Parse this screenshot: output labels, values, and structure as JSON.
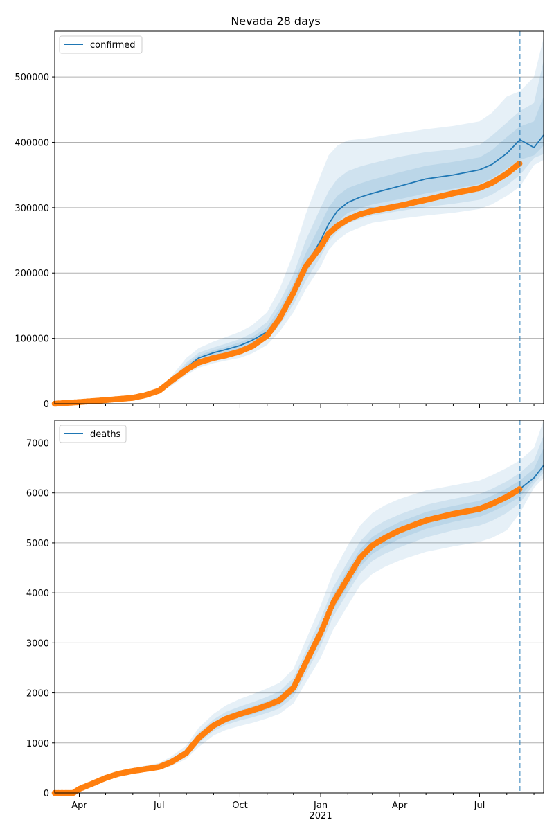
{
  "title": "Nevada 28 days",
  "chart_data": [
    {
      "type": "line",
      "legend": "confirmed",
      "legend_position": "top-left",
      "grid": "horizontal",
      "ylim": [
        0,
        570000
      ],
      "y_ticks": [
        0,
        100000,
        200000,
        300000,
        400000,
        500000
      ],
      "forecast_start": "2021-08-16",
      "x_range": [
        "2020-03-04",
        "2021-09-12"
      ],
      "model": {
        "x": [
          "2020-03-04",
          "2020-04-01",
          "2020-05-01",
          "2020-06-01",
          "2020-06-15",
          "2020-07-01",
          "2020-07-15",
          "2020-08-01",
          "2020-08-15",
          "2020-09-01",
          "2020-09-15",
          "2020-10-01",
          "2020-10-15",
          "2020-11-01",
          "2020-11-15",
          "2020-12-01",
          "2020-12-15",
          "2021-01-01",
          "2021-01-10",
          "2021-01-20",
          "2021-02-01",
          "2021-02-15",
          "2021-03-01",
          "2021-04-01",
          "2021-05-01",
          "2021-06-01",
          "2021-07-01",
          "2021-07-15",
          "2021-08-01",
          "2021-08-16",
          "2021-09-01",
          "2021-09-12"
        ],
        "y": [
          0,
          2500,
          5500,
          9000,
          13000,
          20000,
          33000,
          55000,
          70000,
          78000,
          83000,
          89000,
          97000,
          110000,
          135000,
          170000,
          210000,
          250000,
          275000,
          295000,
          308000,
          316000,
          322000,
          333000,
          344000,
          350000,
          358000,
          366000,
          383000,
          404000,
          392000,
          411000
        ]
      },
      "observed": {
        "x": [
          "2020-03-04",
          "2020-04-01",
          "2020-05-01",
          "2020-06-01",
          "2020-06-15",
          "2020-07-01",
          "2020-07-15",
          "2020-08-01",
          "2020-08-15",
          "2020-09-01",
          "2020-09-15",
          "2020-10-01",
          "2020-10-15",
          "2020-11-01",
          "2020-11-15",
          "2020-12-01",
          "2020-12-15",
          "2021-01-01",
          "2021-01-10",
          "2021-01-20",
          "2021-02-01",
          "2021-02-15",
          "2021-03-01",
          "2021-04-01",
          "2021-05-01",
          "2021-06-01",
          "2021-07-01",
          "2021-07-15",
          "2021-08-01",
          "2021-08-16"
        ],
        "y": [
          0,
          2500,
          5500,
          9000,
          13000,
          20000,
          35000,
          52000,
          63000,
          70000,
          74000,
          80000,
          88000,
          104000,
          130000,
          170000,
          210000,
          240000,
          260000,
          272000,
          282000,
          290000,
          295000,
          303000,
          312000,
          322000,
          330000,
          338000,
          352000,
          368000
        ]
      },
      "bands": [
        {
          "level": "outer",
          "upper": [
            0,
            2500,
            5800,
            10000,
            15000,
            24000,
            42000,
            70000,
            85000,
            95000,
            102000,
            110000,
            120000,
            140000,
            175000,
            230000,
            290000,
            350000,
            380000,
            395000,
            403000,
            405000,
            407000,
            414000,
            420000,
            425000,
            432000,
            445000,
            470000,
            478000,
            500000,
            560000
          ],
          "lower": [
            0,
            2500,
            5300,
            8500,
            12000,
            17000,
            27000,
            44000,
            55000,
            62000,
            66000,
            70000,
            77000,
            90000,
            110000,
            140000,
            175000,
            210000,
            235000,
            250000,
            262000,
            270000,
            277000,
            283000,
            288000,
            292000,
            298000,
            305000,
            318000,
            332000,
            365000,
            373000
          ]
        },
        {
          "level": "middle",
          "upper": [
            0,
            2500,
            5700,
            9600,
            14000,
            22000,
            38000,
            63000,
            78000,
            86000,
            92000,
            99000,
            108000,
            125000,
            155000,
            198000,
            250000,
            300000,
            325000,
            344000,
            356000,
            363000,
            368000,
            378000,
            385000,
            389000,
            396000,
            410000,
            430000,
            448000,
            460000,
            525000
          ],
          "lower": [
            0,
            2500,
            5400,
            8800,
            12500,
            18500,
            30000,
            48000,
            60000,
            68000,
            72000,
            77000,
            85000,
            98000,
            120000,
            152000,
            188000,
            225000,
            248000,
            263000,
            276000,
            283000,
            288000,
            295000,
            301000,
            306000,
            312000,
            320000,
            334000,
            350000,
            376000,
            382000
          ]
        },
        {
          "level": "inner",
          "upper": [
            0,
            2500,
            5600,
            9300,
            13500,
            21000,
            35500,
            59000,
            74000,
            82000,
            87000,
            94000,
            102000,
            117000,
            145000,
            184000,
            230000,
            275000,
            300000,
            318000,
            330000,
            337000,
            343000,
            354000,
            364000,
            370000,
            377000,
            388000,
            408000,
            424000,
            432000,
            470000
          ],
          "lower": [
            0,
            2500,
            5450,
            8900,
            12700,
            19000,
            31500,
            51000,
            64000,
            72000,
            77000,
            82000,
            90000,
            103000,
            126000,
            160000,
            198000,
            238000,
            262000,
            278000,
            292000,
            299000,
            305000,
            313000,
            322000,
            329000,
            336000,
            345000,
            360000,
            373000,
            380000,
            395000
          ]
        }
      ]
    },
    {
      "type": "line",
      "legend": "deaths",
      "legend_position": "top-left",
      "grid": "horizontal",
      "ylim": [
        0,
        7450
      ],
      "y_ticks": [
        0,
        1000,
        2000,
        3000,
        4000,
        5000,
        6000,
        7000
      ],
      "forecast_start": "2021-08-16",
      "x_tick_labels": [
        "Apr",
        "Jul",
        "Oct",
        "Jan",
        "Apr",
        "Jul"
      ],
      "x_tick_dates": [
        "2020-04-01",
        "2020-07-01",
        "2020-10-01",
        "2021-01-01",
        "2021-04-01",
        "2021-07-01"
      ],
      "x_year_label": "2021",
      "model": {
        "x": [
          "2020-03-04",
          "2020-03-25",
          "2020-04-01",
          "2020-04-15",
          "2020-05-01",
          "2020-05-15",
          "2020-06-01",
          "2020-07-01",
          "2020-07-15",
          "2020-08-01",
          "2020-08-15",
          "2020-09-01",
          "2020-09-15",
          "2020-10-01",
          "2020-10-15",
          "2020-11-01",
          "2020-11-15",
          "2020-12-01",
          "2020-12-15",
          "2021-01-01",
          "2021-01-15",
          "2021-02-01",
          "2021-02-15",
          "2021-03-01",
          "2021-03-15",
          "2021-04-01",
          "2021-05-01",
          "2021-06-01",
          "2021-07-01",
          "2021-07-15",
          "2021-08-01",
          "2021-08-16",
          "2021-09-01",
          "2021-09-12"
        ],
        "y": [
          0,
          0,
          80,
          180,
          300,
          380,
          440,
          520,
          620,
          800,
          1100,
          1350,
          1480,
          1580,
          1650,
          1750,
          1850,
          2100,
          2600,
          3200,
          3800,
          4300,
          4700,
          4950,
          5100,
          5250,
          5450,
          5580,
          5680,
          5780,
          5920,
          6080,
          6300,
          6550
        ]
      },
      "observed": {
        "x": [
          "2020-03-04",
          "2020-03-25",
          "2020-04-01",
          "2020-04-15",
          "2020-05-01",
          "2020-05-15",
          "2020-06-01",
          "2020-07-01",
          "2020-07-15",
          "2020-08-01",
          "2020-08-15",
          "2020-09-01",
          "2020-09-15",
          "2020-10-01",
          "2020-10-15",
          "2020-11-01",
          "2020-11-15",
          "2020-12-01",
          "2020-12-15",
          "2021-01-01",
          "2021-01-15",
          "2021-02-01",
          "2021-02-15",
          "2021-03-01",
          "2021-03-15",
          "2021-04-01",
          "2021-05-01",
          "2021-06-01",
          "2021-07-01",
          "2021-07-15",
          "2021-08-01",
          "2021-08-16"
        ],
        "y": [
          0,
          0,
          80,
          180,
          300,
          380,
          440,
          520,
          620,
          800,
          1100,
          1350,
          1480,
          1580,
          1650,
          1750,
          1850,
          2100,
          2600,
          3200,
          3800,
          4300,
          4700,
          4950,
          5100,
          5250,
          5450,
          5580,
          5680,
          5780,
          5920,
          6080
        ]
      },
      "bands": [
        {
          "level": "outer",
          "upper": [
            0,
            0,
            90,
            200,
            340,
            430,
            500,
            600,
            730,
            950,
            1300,
            1580,
            1750,
            1880,
            1970,
            2090,
            2200,
            2480,
            3050,
            3750,
            4400,
            4950,
            5350,
            5600,
            5750,
            5880,
            6050,
            6150,
            6250,
            6350,
            6500,
            6650,
            6900,
            7450
          ],
          "lower": [
            0,
            0,
            70,
            160,
            270,
            340,
            390,
            460,
            540,
            680,
            920,
            1150,
            1260,
            1340,
            1400,
            1490,
            1580,
            1790,
            2200,
            2700,
            3250,
            3750,
            4150,
            4380,
            4520,
            4650,
            4820,
            4930,
            5020,
            5100,
            5250,
            5600,
            6100,
            6300
          ]
        },
        {
          "level": "middle",
          "upper": [
            0,
            0,
            85,
            190,
            320,
            405,
            470,
            560,
            680,
            880,
            1210,
            1470,
            1620,
            1730,
            1810,
            1920,
            2030,
            2300,
            2830,
            3480,
            4100,
            4630,
            5030,
            5290,
            5440,
            5570,
            5760,
            5880,
            5980,
            6080,
            6230,
            6400,
            6650,
            7150
          ],
          "lower": [
            0,
            0,
            75,
            170,
            285,
            360,
            415,
            490,
            580,
            740,
            1000,
            1240,
            1360,
            1450,
            1510,
            1600,
            1690,
            1920,
            2380,
            2940,
            3520,
            4010,
            4400,
            4640,
            4780,
            4910,
            5110,
            5250,
            5350,
            5440,
            5600,
            5800,
            6180,
            6400
          ]
        },
        {
          "level": "inner",
          "upper": [
            0,
            0,
            82,
            185,
            310,
            392,
            455,
            540,
            650,
            840,
            1150,
            1410,
            1550,
            1650,
            1730,
            1830,
            1940,
            2200,
            2720,
            3340,
            3950,
            4470,
            4870,
            5120,
            5270,
            5420,
            5620,
            5740,
            5840,
            5940,
            6090,
            6250,
            6480,
            6900
          ],
          "lower": [
            0,
            0,
            78,
            175,
            290,
            368,
            425,
            500,
            590,
            760,
            1050,
            1290,
            1410,
            1510,
            1570,
            1670,
            1760,
            2000,
            2480,
            3060,
            3650,
            4130,
            4530,
            4780,
            4930,
            5080,
            5280,
            5420,
            5520,
            5620,
            5760,
            5920,
            6250,
            6470
          ]
        }
      ]
    }
  ],
  "colors": {
    "model_line": "#1f77b4",
    "observed": "#ff7f0e",
    "band": "#1f77b4",
    "grid": "#b0b0b0",
    "forecast_line": "#1f77b4"
  }
}
